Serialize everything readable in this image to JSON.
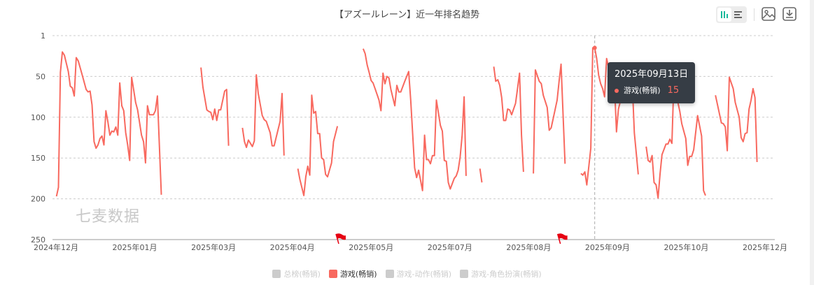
{
  "title": "【アズールレーン】近一年排名趋势",
  "toolbar": {
    "icons": [
      "bar-chart-icon",
      "list-icon",
      "image-save-icon",
      "download-icon"
    ],
    "active_view": "chart"
  },
  "watermark": "七麦数据",
  "colors": {
    "series": "#f8695f",
    "inactive": "#cccccc",
    "active_toggle": "#19b99c",
    "tooltip_bg": "#363d45",
    "flag": "#e60012"
  },
  "tooltip": {
    "date": "2025年09月13日",
    "series": "游戏(畅销)",
    "value": "15"
  },
  "legend": [
    {
      "label": "总榜(畅销)",
      "active": false
    },
    {
      "label": "游戏(畅销)",
      "active": true
    },
    {
      "label": "游戏-动作(畅销)",
      "active": false
    },
    {
      "label": "游戏-角色扮演(畅销)",
      "active": false
    }
  ],
  "chart_data": {
    "type": "line",
    "title": "【アズールレーン】近一年排名趋势",
    "xlim": [
      "2024-12-13",
      "2025-12-13"
    ],
    "ylim": [
      0,
      250
    ],
    "y_inverted": true,
    "grid": "horizontal-dashed",
    "legend_position": "bottom",
    "x_tick_labels": [
      "2024年12月",
      "2025年01月",
      "2025年03月",
      "2025年04月",
      "2025年05月",
      "2025年07月",
      "2025年08月",
      "2025年09月",
      "2025年10月",
      "2025年12月"
    ],
    "y_tick_labels": [
      "1",
      "50",
      "100",
      "150",
      "200",
      "250"
    ],
    "y_ticks": [
      0,
      50,
      100,
      150,
      200,
      250
    ],
    "event_flags": [
      "2025-05-07",
      "2025-08-27"
    ],
    "highlight": {
      "date": "2025-09-13",
      "value": 15
    },
    "series": [
      {
        "name": "游戏(畅销)",
        "points": [
          [
            "2024-12-15",
            197
          ],
          [
            "2024-12-16",
            186
          ],
          [
            "2024-12-17",
            45
          ],
          [
            "2024-12-18",
            20
          ],
          [
            "2024-12-19",
            24
          ],
          [
            "2024-12-21",
            44
          ],
          [
            "2024-12-22",
            62
          ],
          [
            "2024-12-23",
            64
          ],
          [
            "2024-12-24",
            74
          ],
          [
            "2024-12-25",
            27
          ],
          [
            "2024-12-26",
            31
          ],
          [
            "2024-12-28",
            48
          ],
          [
            "2024-12-30",
            66
          ],
          [
            "2024-12-31",
            69
          ],
          [
            "2025-01-01",
            68
          ],
          [
            "2025-01-02",
            85
          ],
          [
            "2025-01-03",
            130
          ],
          [
            "2025-01-04",
            138
          ],
          [
            "2025-01-05",
            134
          ],
          [
            "2025-01-06",
            126
          ],
          [
            "2025-01-07",
            123
          ],
          [
            "2025-01-08",
            134
          ],
          [
            "2025-01-09",
            92
          ],
          [
            "2025-01-10",
            106
          ],
          [
            "2025-01-11",
            122
          ],
          [
            "2025-01-12",
            117
          ],
          [
            "2025-01-13",
            118
          ],
          [
            "2025-01-14",
            112
          ],
          [
            "2025-01-15",
            122
          ],
          [
            "2025-01-16",
            58
          ],
          [
            "2025-01-17",
            86
          ],
          [
            "2025-01-18",
            92
          ],
          [
            "2025-01-19",
            119
          ],
          [
            "2025-01-20",
            134
          ],
          [
            "2025-01-21",
            153
          ],
          [
            "2025-01-22",
            51
          ],
          [
            "2025-01-23",
            66
          ],
          [
            "2025-01-24",
            82
          ],
          [
            "2025-01-25",
            91
          ],
          [
            "2025-01-27",
            122
          ],
          [
            "2025-01-28",
            130
          ],
          [
            "2025-01-29",
            156
          ],
          [
            "2025-01-30",
            86
          ],
          [
            "2025-01-31",
            97
          ],
          [
            "2025-02-02",
            97
          ],
          [
            "2025-02-03",
            92
          ],
          [
            "2025-02-04",
            74
          ],
          [
            "2025-02-06",
            195
          ],
          [
            "2025-02-07",
            null
          ],
          [
            "2025-02-26",
            39
          ],
          [
            "2025-02-27",
            63
          ],
          [
            "2025-03-01",
            91
          ],
          [
            "2025-03-02",
            93
          ],
          [
            "2025-03-03",
            94
          ],
          [
            "2025-03-04",
            103
          ],
          [
            "2025-03-05",
            90
          ],
          [
            "2025-03-06",
            104
          ],
          [
            "2025-03-07",
            91
          ],
          [
            "2025-03-08",
            91
          ],
          [
            "2025-03-10",
            68
          ],
          [
            "2025-03-11",
            66
          ],
          [
            "2025-03-12",
            135
          ],
          [
            "2025-03-13",
            null
          ],
          [
            "2025-03-19",
            113
          ],
          [
            "2025-03-20",
            130
          ],
          [
            "2025-03-21",
            137
          ],
          [
            "2025-03-22",
            128
          ],
          [
            "2025-03-24",
            136
          ],
          [
            "2025-03-25",
            129
          ],
          [
            "2025-03-26",
            48
          ],
          [
            "2025-03-27",
            71
          ],
          [
            "2025-03-29",
            98
          ],
          [
            "2025-03-30",
            103
          ],
          [
            "2025-03-31",
            105
          ],
          [
            "2025-04-02",
            119
          ],
          [
            "2025-04-03",
            135
          ],
          [
            "2025-04-04",
            135
          ],
          [
            "2025-04-05",
            125
          ],
          [
            "2025-04-07",
            105
          ],
          [
            "2025-04-08",
            71
          ],
          [
            "2025-04-09",
            147
          ],
          [
            "2025-04-10",
            null
          ],
          [
            "2025-04-16",
            163
          ],
          [
            "2025-04-17",
            176
          ],
          [
            "2025-04-19",
            196
          ],
          [
            "2025-04-20",
            173
          ],
          [
            "2025-04-21",
            160
          ],
          [
            "2025-04-22",
            171
          ],
          [
            "2025-04-23",
            73
          ],
          [
            "2025-04-24",
            95
          ],
          [
            "2025-04-25",
            93
          ],
          [
            "2025-04-26",
            120
          ],
          [
            "2025-04-27",
            120
          ],
          [
            "2025-04-28",
            150
          ],
          [
            "2025-04-29",
            152
          ],
          [
            "2025-04-30",
            170
          ],
          [
            "2025-05-01",
            173
          ],
          [
            "2025-05-03",
            156
          ],
          [
            "2025-05-04",
            130
          ],
          [
            "2025-05-06",
            111
          ],
          [
            "2025-05-07",
            null
          ],
          [
            "2025-05-19",
            16
          ],
          [
            "2025-05-20",
            22
          ],
          [
            "2025-05-21",
            36
          ],
          [
            "2025-05-22",
            45
          ],
          [
            "2025-05-23",
            55
          ],
          [
            "2025-05-24",
            58
          ],
          [
            "2025-05-25",
            65
          ],
          [
            "2025-05-27",
            79
          ],
          [
            "2025-05-28",
            92
          ],
          [
            "2025-05-29",
            46
          ],
          [
            "2025-05-30",
            59
          ],
          [
            "2025-05-31",
            50
          ],
          [
            "2025-06-01",
            52
          ],
          [
            "2025-06-02",
            66
          ],
          [
            "2025-06-04",
            86
          ],
          [
            "2025-06-05",
            61
          ],
          [
            "2025-06-06",
            69
          ],
          [
            "2025-06-07",
            69
          ],
          [
            "2025-06-09",
            56
          ],
          [
            "2025-06-11",
            44
          ],
          [
            "2025-06-12",
            79
          ],
          [
            "2025-06-14",
            162
          ],
          [
            "2025-06-15",
            174
          ],
          [
            "2025-06-16",
            165
          ],
          [
            "2025-06-18",
            190
          ],
          [
            "2025-06-19",
            122
          ],
          [
            "2025-06-20",
            152
          ],
          [
            "2025-06-21",
            152
          ],
          [
            "2025-06-22",
            157
          ],
          [
            "2025-06-23",
            147
          ],
          [
            "2025-06-24",
            147
          ],
          [
            "2025-06-25",
            79
          ],
          [
            "2025-06-27",
            110
          ],
          [
            "2025-06-28",
            117
          ],
          [
            "2025-06-29",
            153
          ],
          [
            "2025-06-30",
            154
          ],
          [
            "2025-07-01",
            180
          ],
          [
            "2025-07-02",
            188
          ],
          [
            "2025-07-04",
            175
          ],
          [
            "2025-07-05",
            172
          ],
          [
            "2025-07-06",
            165
          ],
          [
            "2025-07-07",
            149
          ],
          [
            "2025-07-08",
            122
          ],
          [
            "2025-07-09",
            75
          ],
          [
            "2025-07-10",
            172
          ],
          [
            "2025-07-11",
            null
          ],
          [
            "2025-07-17",
            163
          ],
          [
            "2025-07-18",
            180
          ],
          [
            "2025-07-19",
            null
          ],
          [
            "2025-07-24",
            38
          ],
          [
            "2025-07-25",
            56
          ],
          [
            "2025-07-26",
            54
          ],
          [
            "2025-07-27",
            61
          ],
          [
            "2025-07-28",
            76
          ],
          [
            "2025-07-29",
            104
          ],
          [
            "2025-07-30",
            104
          ],
          [
            "2025-07-31",
            90
          ],
          [
            "2025-08-01",
            91
          ],
          [
            "2025-08-02",
            97
          ],
          [
            "2025-08-04",
            83
          ],
          [
            "2025-08-05",
            65
          ],
          [
            "2025-08-06",
            46
          ],
          [
            "2025-08-07",
            122
          ],
          [
            "2025-08-08",
            167
          ],
          [
            "2025-08-09",
            null
          ],
          [
            "2025-08-13",
            169
          ],
          [
            "2025-08-14",
            42
          ],
          [
            "2025-08-16",
            56
          ],
          [
            "2025-08-17",
            59
          ],
          [
            "2025-08-18",
            73
          ],
          [
            "2025-08-20",
            88
          ],
          [
            "2025-08-21",
            116
          ],
          [
            "2025-08-22",
            113
          ],
          [
            "2025-08-23",
            102
          ],
          [
            "2025-08-25",
            79
          ],
          [
            "2025-08-26",
            56
          ],
          [
            "2025-08-27",
            35
          ],
          [
            "2025-08-29",
            157
          ],
          [
            "2025-08-30",
            null
          ],
          [
            "2025-09-06",
            169
          ],
          [
            "2025-09-07",
            171
          ],
          [
            "2025-09-08",
            167
          ],
          [
            "2025-09-09",
            183
          ],
          [
            "2025-09-11",
            138
          ],
          [
            "2025-09-12",
            15
          ],
          [
            "2025-09-13",
            15
          ],
          [
            "2025-09-14",
            28
          ],
          [
            "2025-09-15",
            49
          ],
          [
            "2025-09-16",
            59
          ],
          [
            "2025-09-17",
            65
          ],
          [
            "2025-09-18",
            75
          ],
          [
            "2025-09-19",
            28
          ],
          [
            "2025-09-20",
            39
          ],
          [
            "2025-09-22",
            56
          ],
          [
            "2025-09-23",
            62
          ],
          [
            "2025-09-24",
            118
          ],
          [
            "2025-09-25",
            90
          ],
          [
            "2025-09-26",
            80
          ],
          [
            "2025-09-27",
            79
          ],
          [
            "2025-09-29",
            62
          ],
          [
            "2025-09-30",
            42
          ],
          [
            "2025-10-02",
            59
          ],
          [
            "2025-10-03",
            119
          ],
          [
            "2025-10-05",
            170
          ],
          [
            "2025-10-06",
            null
          ],
          [
            "2025-10-09",
            136
          ],
          [
            "2025-10-10",
            153
          ],
          [
            "2025-10-11",
            155
          ],
          [
            "2025-10-12",
            147
          ],
          [
            "2025-10-13",
            180
          ],
          [
            "2025-10-14",
            183
          ],
          [
            "2025-10-15",
            199
          ],
          [
            "2025-10-16",
            170
          ],
          [
            "2025-10-17",
            146
          ],
          [
            "2025-10-19",
            133
          ],
          [
            "2025-10-20",
            133
          ],
          [
            "2025-10-21",
            127
          ],
          [
            "2025-10-22",
            132
          ],
          [
            "2025-10-23",
            55
          ],
          [
            "2025-10-24",
            70
          ],
          [
            "2025-10-26",
            93
          ],
          [
            "2025-10-27",
            108
          ],
          [
            "2025-10-29",
            126
          ],
          [
            "2025-10-30",
            159
          ],
          [
            "2025-10-31",
            148
          ],
          [
            "2025-11-01",
            148
          ],
          [
            "2025-11-02",
            140
          ],
          [
            "2025-11-04",
            98
          ],
          [
            "2025-11-06",
            123
          ],
          [
            "2025-11-07",
            190
          ],
          [
            "2025-11-08",
            196
          ],
          [
            "2025-11-09",
            null
          ],
          [
            "2025-11-13",
            73
          ],
          [
            "2025-11-16",
            107
          ],
          [
            "2025-11-17",
            108
          ],
          [
            "2025-11-18",
            112
          ],
          [
            "2025-11-19",
            141
          ],
          [
            "2025-11-20",
            51
          ],
          [
            "2025-11-22",
            65
          ],
          [
            "2025-11-23",
            82
          ],
          [
            "2025-11-24",
            91
          ],
          [
            "2025-11-25",
            100
          ],
          [
            "2025-11-26",
            125
          ],
          [
            "2025-11-27",
            130
          ],
          [
            "2025-11-28",
            120
          ],
          [
            "2025-11-29",
            119
          ],
          [
            "2025-11-30",
            90
          ],
          [
            "2025-12-01",
            79
          ],
          [
            "2025-12-02",
            65
          ],
          [
            "2025-12-03",
            76
          ],
          [
            "2025-12-04",
            155
          ]
        ]
      }
    ]
  }
}
